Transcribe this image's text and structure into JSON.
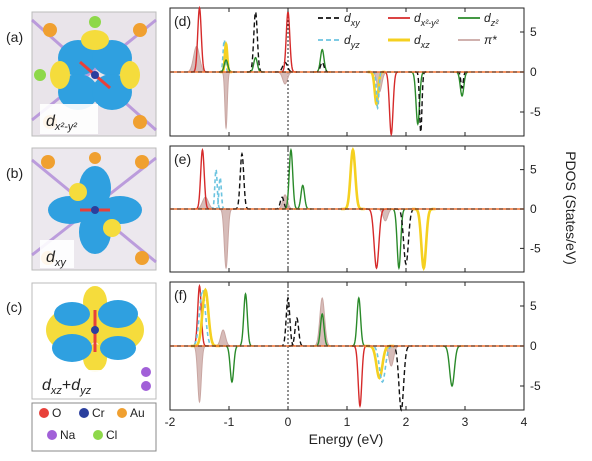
{
  "figure": {
    "panel_labels": [
      "(a)",
      "(b)",
      "(c)",
      "(d)",
      "(e)",
      "(f)"
    ],
    "orbital_images": [
      {
        "label_main": "d",
        "label_sub": "x²-y²"
      },
      {
        "label_main": "d",
        "label_sub": "xy"
      },
      {
        "label_main": "d",
        "label_sub": "xz",
        "label_plus": "+",
        "label_main2": "d",
        "label_sub2": "yz"
      }
    ],
    "atom_legend": [
      {
        "symbol": "O",
        "color": "#e8403a"
      },
      {
        "symbol": "Cr",
        "color": "#2a3f9e"
      },
      {
        "symbol": "Au",
        "color": "#f0a030"
      },
      {
        "symbol": "Na",
        "color": "#a160d8"
      },
      {
        "symbol": "Cl",
        "color": "#8ed84a"
      }
    ],
    "colors": {
      "dxy": "#111111",
      "dx2y2": "#d62a2a",
      "dz2": "#2a8a2a",
      "dyz": "#6cc4e0",
      "dxz": "#f5d020",
      "pi_star": "#c9a6a2",
      "lobe_yellow": "#f5dc3c",
      "lobe_blue": "#2fa0e0"
    }
  },
  "chart_data": {
    "type": "line",
    "xlabel": "Energy (eV)",
    "ylabel": "PDOS (States/eV)",
    "xlim": [
      -2,
      4
    ],
    "ylim": [
      -8,
      8
    ],
    "x_ticks": [
      "-2",
      "-1",
      "0",
      "1",
      "2",
      "3",
      "4"
    ],
    "x_tick_values": [
      -2,
      -1,
      0,
      1,
      2,
      3,
      4
    ],
    "y_ticks": [
      "-5",
      "0",
      "5"
    ],
    "y_tick_values": [
      -5,
      0,
      5
    ],
    "fermi_level": 0,
    "legend": [
      {
        "key": "dxy",
        "main": "d",
        "sub": "xy",
        "style": "dashed"
      },
      {
        "key": "dx2y2",
        "main": "d",
        "sub": "x²-y²",
        "style": "solid"
      },
      {
        "key": "dz2",
        "main": "d",
        "sub": "z²",
        "style": "solid"
      },
      {
        "key": "dyz",
        "main": "d",
        "sub": "yz",
        "style": "dashed"
      },
      {
        "key": "dxz",
        "main": "d",
        "sub": "xz",
        "style": "solid"
      },
      {
        "key": "pi_star",
        "main": "π*",
        "sub": "",
        "style": "solid"
      }
    ],
    "panels": [
      {
        "label": "(d)",
        "peaks": [
          {
            "s": "pi_star",
            "e": -1.55,
            "h": 3.2,
            "w": 0.05
          },
          {
            "s": "dx2y2",
            "e": -1.5,
            "h": 8,
            "w": 0.03
          },
          {
            "s": "dyz",
            "e": -1.08,
            "h": 4,
            "w": 0.02
          },
          {
            "s": "dxz",
            "e": -1.05,
            "h": 3.5,
            "w": 0.02
          },
          {
            "s": "pi_star",
            "e": -1.05,
            "h": -7,
            "w": 0.02
          },
          {
            "s": "dz2",
            "e": -1.05,
            "h": 1.5,
            "w": 0.03
          },
          {
            "s": "dxy",
            "e": -0.55,
            "h": 7.5,
            "w": 0.03
          },
          {
            "s": "dz2",
            "e": -0.55,
            "h": 1.8,
            "w": 0.03
          },
          {
            "s": "dxy",
            "e": -0.05,
            "h": 1.2,
            "w": 0.04
          },
          {
            "s": "pi_star",
            "e": -0.05,
            "h": -1.5,
            "w": 0.04
          },
          {
            "s": "dx2y2",
            "e": 0.0,
            "h": 7.5,
            "w": 0.03
          },
          {
            "s": "dz2",
            "e": 0.58,
            "h": 2.8,
            "w": 0.03
          },
          {
            "s": "dxy",
            "e": 0.58,
            "h": 1.2,
            "w": 0.03
          },
          {
            "s": "dxz",
            "e": 1.5,
            "h": -4,
            "w": 0.03
          },
          {
            "s": "dyz",
            "e": 1.52,
            "h": -4.5,
            "w": 0.02
          },
          {
            "s": "pi_star",
            "e": 1.55,
            "h": -2.5,
            "w": 0.04
          },
          {
            "s": "dx2y2",
            "e": 1.75,
            "h": -7.8,
            "w": 0.03
          },
          {
            "s": "dz2",
            "e": 2.2,
            "h": -6.5,
            "w": 0.03
          },
          {
            "s": "dxy",
            "e": 2.25,
            "h": -7.5,
            "w": 0.02
          },
          {
            "s": "dz2",
            "e": 2.95,
            "h": -3,
            "w": 0.03
          },
          {
            "s": "dxy",
            "e": 2.95,
            "h": -2,
            "w": 0.02
          }
        ]
      },
      {
        "label": "(e)",
        "peaks": [
          {
            "s": "dx2y2",
            "e": -1.45,
            "h": 7.5,
            "w": 0.03
          },
          {
            "s": "pi_star",
            "e": -1.4,
            "h": 1.5,
            "w": 0.05
          },
          {
            "s": "dyz",
            "e": -1.22,
            "h": 5,
            "w": 0.02
          },
          {
            "s": "dyz",
            "e": -1.15,
            "h": 4,
            "w": 0.02
          },
          {
            "s": "pi_star",
            "e": -1.05,
            "h": -7.5,
            "w": 0.03
          },
          {
            "s": "dxy",
            "e": -0.78,
            "h": 7,
            "w": 0.03
          },
          {
            "s": "dxy",
            "e": -0.1,
            "h": 1.5,
            "w": 0.03
          },
          {
            "s": "pi_star",
            "e": -0.05,
            "h": 1.8,
            "w": 0.04
          },
          {
            "s": "dz2",
            "e": 0.05,
            "h": 7.5,
            "w": 0.03
          },
          {
            "s": "dz2",
            "e": 0.25,
            "h": 3,
            "w": 0.03
          },
          {
            "s": "dxz",
            "e": 1.1,
            "h": 7.5,
            "w": 0.04
          },
          {
            "s": "dx2y2",
            "e": 1.5,
            "h": -7.5,
            "w": 0.04
          },
          {
            "s": "pi_star",
            "e": 1.65,
            "h": -1.5,
            "w": 0.04
          },
          {
            "s": "dz2",
            "e": 1.88,
            "h": -7.5,
            "w": 0.03
          },
          {
            "s": "dxy",
            "e": 2.0,
            "h": -7,
            "w": 0.04
          },
          {
            "s": "dxz",
            "e": 2.3,
            "h": -7.5,
            "w": 0.04
          }
        ]
      },
      {
        "label": "(f)",
        "peaks": [
          {
            "s": "dx2y2",
            "e": -1.5,
            "h": 7.5,
            "w": 0.03
          },
          {
            "s": "dyz",
            "e": -1.45,
            "h": 7,
            "w": 0.05
          },
          {
            "s": "dxz",
            "e": -1.4,
            "h": 7,
            "w": 0.05
          },
          {
            "s": "pi_star",
            "e": -1.5,
            "h": -7,
            "w": 0.03
          },
          {
            "s": "pi_star",
            "e": -1.1,
            "h": 2,
            "w": 0.04
          },
          {
            "s": "dz2",
            "e": -0.95,
            "h": -4.5,
            "w": 0.03
          },
          {
            "s": "dz2",
            "e": -0.72,
            "h": 6.5,
            "w": 0.03
          },
          {
            "s": "dxy",
            "e": 0.0,
            "h": 6,
            "w": 0.03
          },
          {
            "s": "dxy",
            "e": 0.15,
            "h": 3.5,
            "w": 0.03
          },
          {
            "s": "pi_star",
            "e": 0.58,
            "h": 6,
            "w": 0.04
          },
          {
            "s": "dz2",
            "e": 0.58,
            "h": 4,
            "w": 0.03
          },
          {
            "s": "dz2",
            "e": 1.2,
            "h": 6,
            "w": 0.03
          },
          {
            "s": "dx2y2",
            "e": 1.22,
            "h": -7.5,
            "w": 0.03
          },
          {
            "s": "dxz",
            "e": 1.55,
            "h": -4,
            "w": 0.05
          },
          {
            "s": "dyz",
            "e": 1.6,
            "h": -4.5,
            "w": 0.05
          },
          {
            "s": "pi_star",
            "e": 1.75,
            "h": -2.5,
            "w": 0.04
          },
          {
            "s": "dxy",
            "e": 1.92,
            "h": -8,
            "w": 0.04
          },
          {
            "s": "dz2",
            "e": 2.78,
            "h": -5,
            "w": 0.04
          }
        ]
      }
    ]
  }
}
